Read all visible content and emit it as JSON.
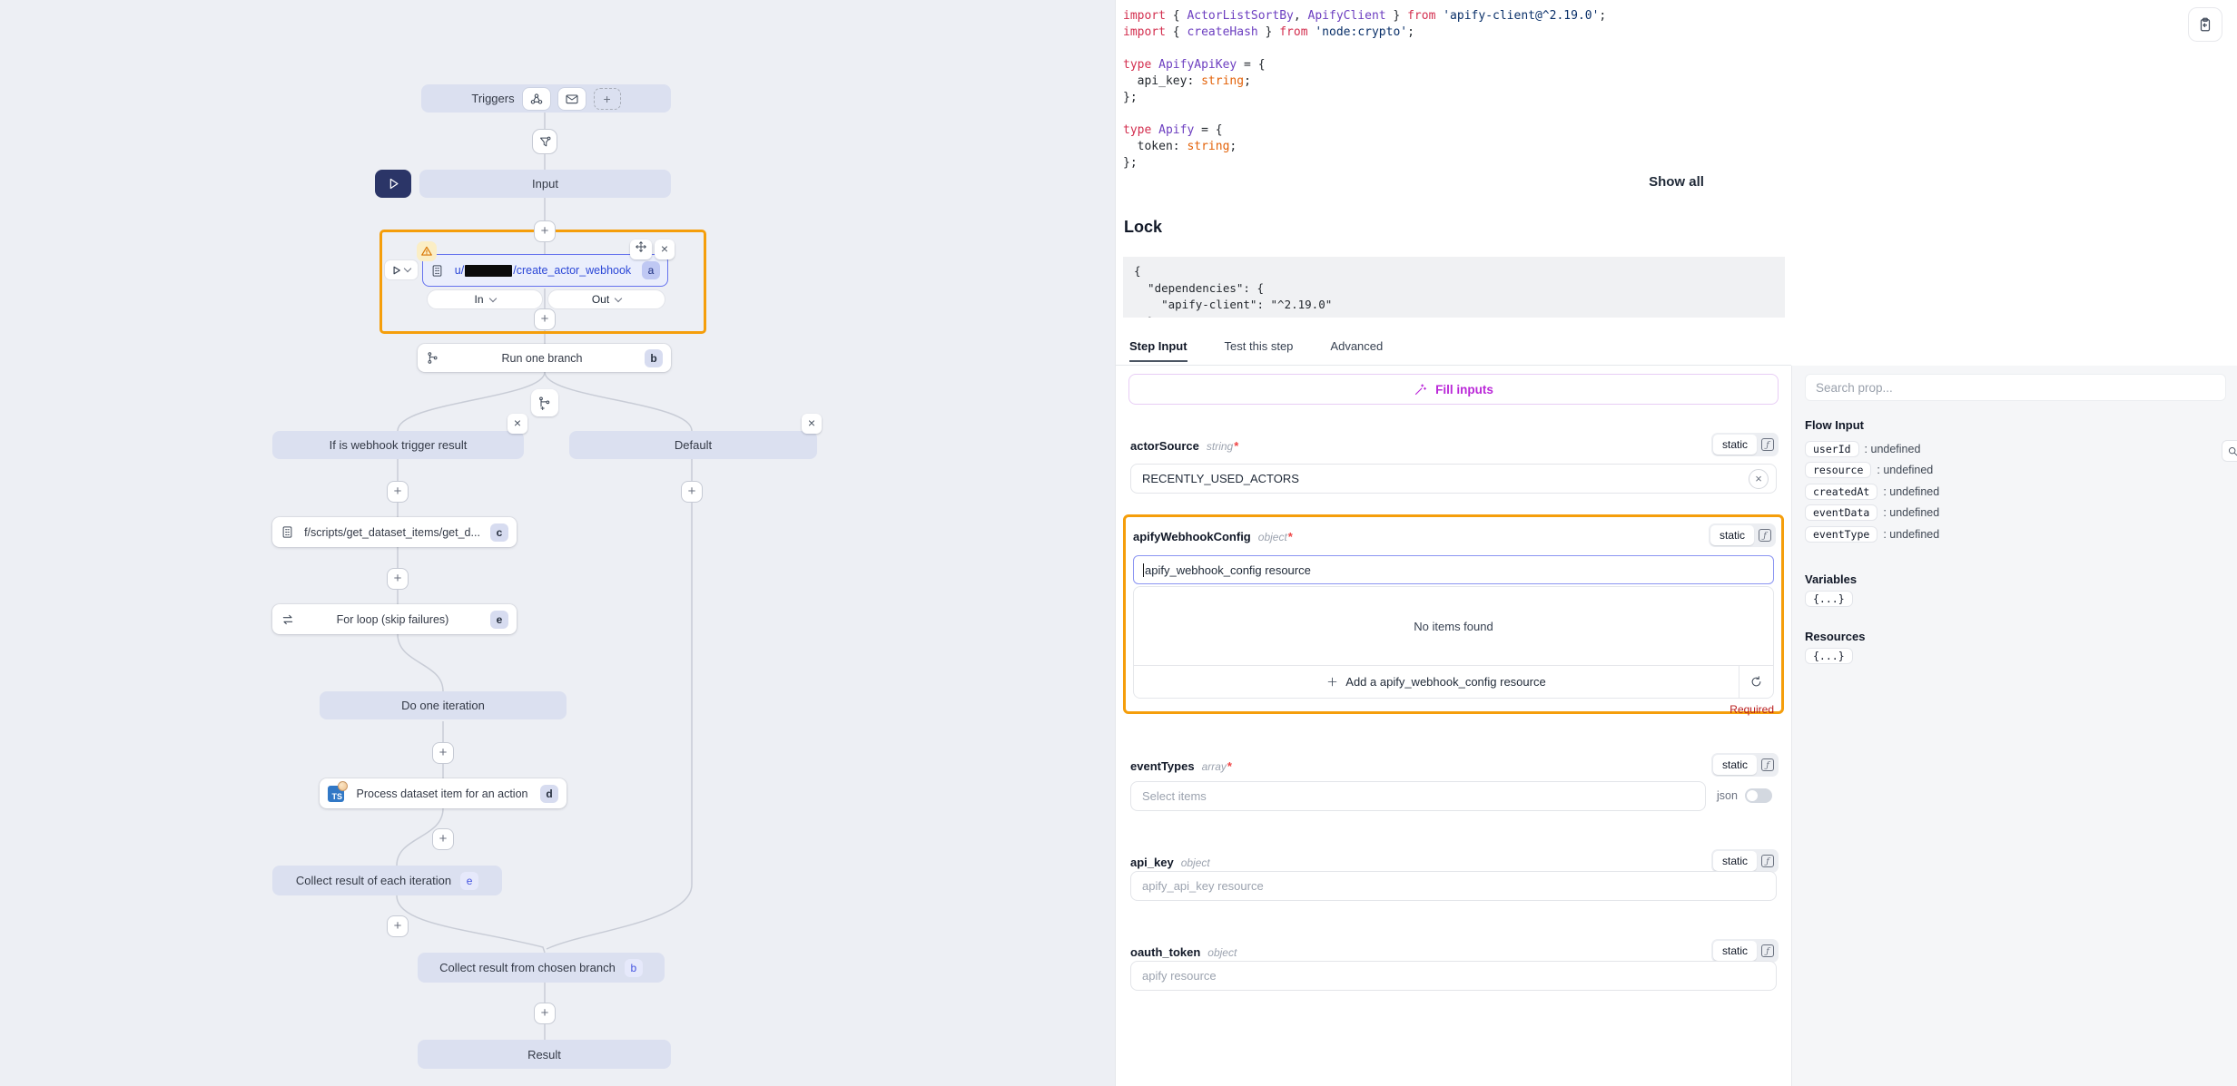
{
  "flow": {
    "triggers_label": "Triggers",
    "input_label": "Input",
    "webhook_step": {
      "path_prefix": "u/",
      "path_suffix": "/create_actor_webhook",
      "badge": "a"
    },
    "in_label": "In",
    "out_label": "Out",
    "run_one_branch": {
      "label": "Run one branch",
      "badge": "b"
    },
    "branch_if_label": "If is webhook trigger result",
    "branch_default_label": "Default",
    "get_dataset_step": {
      "label": "f/scripts/get_dataset_items/get_d...",
      "badge": "c"
    },
    "for_loop": {
      "label": "For loop (skip failures)",
      "badge": "e"
    },
    "do_one_iteration_label": "Do one iteration",
    "process_step": {
      "label": "Process dataset item for an action",
      "badge": "d",
      "icon_text": "TS"
    },
    "collect_iteration": {
      "label": "Collect result of each iteration",
      "badge": "e"
    },
    "collect_branch": {
      "label": "Collect result from chosen branch",
      "badge": "b"
    },
    "result_label": "Result",
    "close_glyph": "×",
    "plus_glyph": "+"
  },
  "code": {
    "lines": [
      [
        [
          "k",
          "import"
        ],
        [
          "p",
          " { "
        ],
        [
          "i",
          "ActorListSortBy"
        ],
        [
          "p",
          ", "
        ],
        [
          "i",
          "ApifyClient"
        ],
        [
          "p",
          " } "
        ],
        [
          "k",
          "from"
        ],
        [
          "p",
          " "
        ],
        [
          "s",
          "'apify-client@^2.19.0'"
        ],
        [
          "p",
          ";"
        ]
      ],
      [
        [
          "k",
          "import"
        ],
        [
          "p",
          " { "
        ],
        [
          "i",
          "createHash"
        ],
        [
          "p",
          " } "
        ],
        [
          "k",
          "from"
        ],
        [
          "p",
          " "
        ],
        [
          "s",
          "'node:crypto'"
        ],
        [
          "p",
          ";"
        ]
      ],
      [],
      [
        [
          "k",
          "type"
        ],
        [
          "p",
          " "
        ],
        [
          "i",
          "ApifyApiKey"
        ],
        [
          "p",
          " = {"
        ]
      ],
      [
        [
          "p",
          "  api_key: "
        ],
        [
          "t",
          "string"
        ],
        [
          "p",
          ";"
        ]
      ],
      [
        [
          "p",
          "};"
        ]
      ],
      [],
      [
        [
          "k",
          "type"
        ],
        [
          "p",
          " "
        ],
        [
          "i",
          "Apify"
        ],
        [
          "p",
          " = {"
        ]
      ],
      [
        [
          "p",
          "  token: "
        ],
        [
          "t",
          "string"
        ],
        [
          "p",
          ";"
        ]
      ],
      [
        [
          "p",
          "};"
        ]
      ]
    ]
  },
  "show_all_label": "Show all",
  "lock": {
    "title": "Lock",
    "lines": [
      "{",
      "  \"dependencies\": {",
      "    \"apify-client\": \"^2.19.0\"",
      "  }",
      "}"
    ]
  },
  "tabs": {
    "step_input": "Step Input",
    "test_this_step": "Test this step",
    "advanced": "Advanced"
  },
  "fill_inputs_label": "Fill inputs",
  "fields": {
    "actor_source": {
      "label": "actorSource",
      "type": "string",
      "mode": "static",
      "value": "RECENTLY_USED_ACTORS",
      "clear_glyph": "×"
    },
    "webhook_config": {
      "label": "apifyWebhookConfig",
      "type": "object",
      "mode": "static",
      "placeholder": "apify_webhook_config resource",
      "no_items": "No items found",
      "add_label": "Add a apify_webhook_config resource",
      "required_note": "Required"
    },
    "event_types": {
      "label": "eventTypes",
      "type": "array",
      "mode": "static",
      "placeholder": "Select items",
      "json_label": "json"
    },
    "api_key": {
      "label": "api_key",
      "type": "object",
      "mode": "static",
      "placeholder": "apify_api_key resource"
    },
    "oauth_token": {
      "label": "oauth_token",
      "type": "object",
      "mode": "static",
      "placeholder": "apify resource"
    }
  },
  "props": {
    "search_placeholder": "Search prop...",
    "flow_input_title": "Flow Input",
    "rows": [
      {
        "key": "userId",
        "value": "undefined"
      },
      {
        "key": "resource",
        "value": "undefined"
      },
      {
        "key": "createdAt",
        "value": "undefined"
      },
      {
        "key": "eventData",
        "value": "undefined"
      },
      {
        "key": "eventType",
        "value": "undefined"
      }
    ],
    "variables_title": "Variables",
    "variables_value": "{...}",
    "resources_title": "Resources",
    "resources_value": "{...}"
  }
}
